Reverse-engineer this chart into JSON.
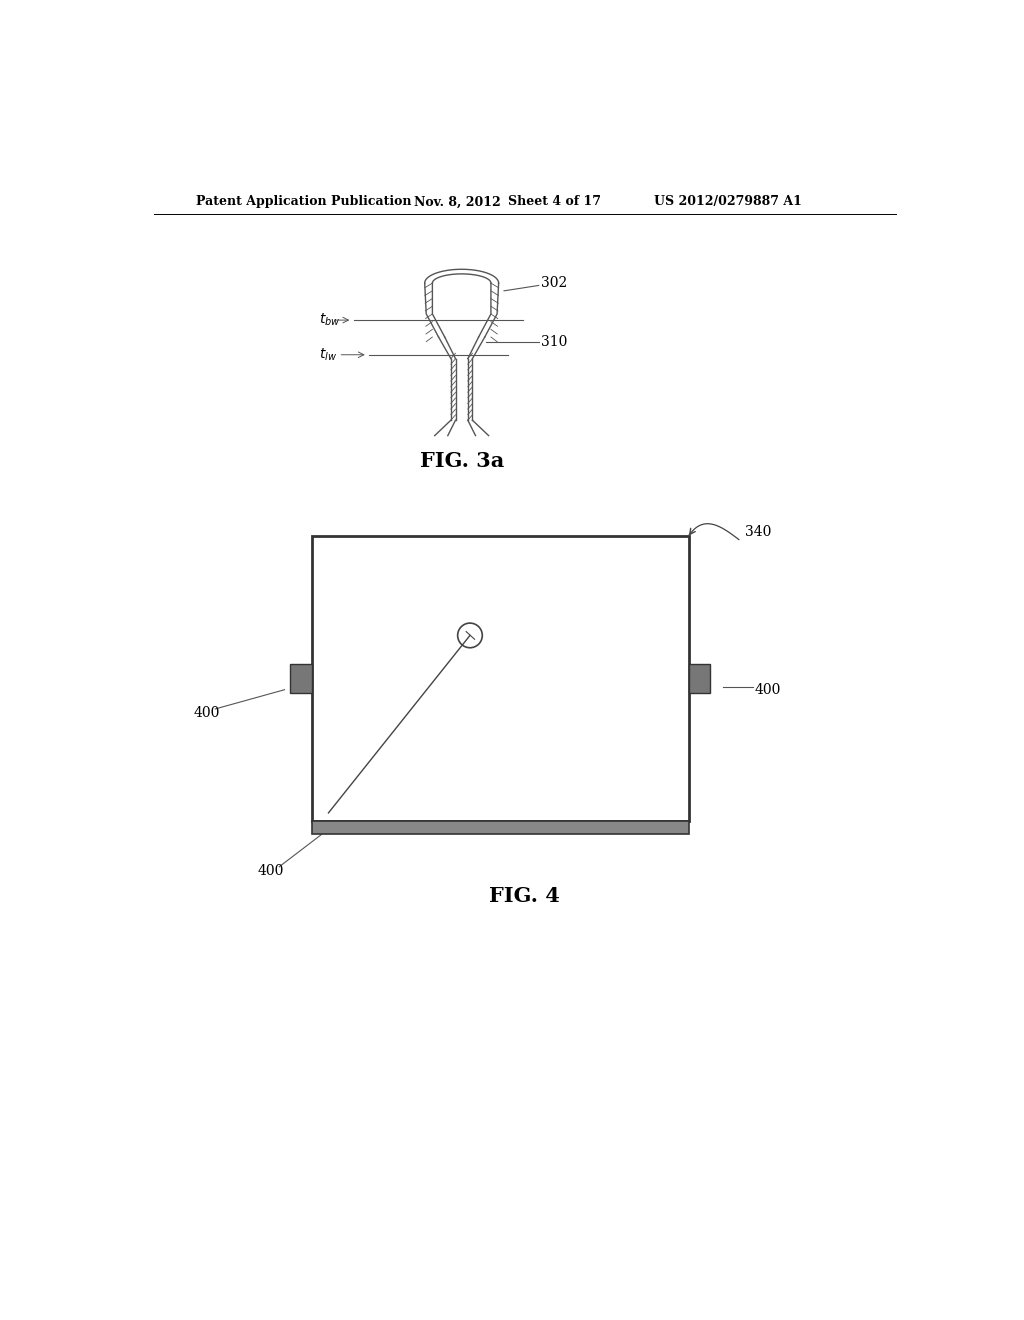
{
  "bg_color": "#ffffff",
  "header_text": "Patent Application Publication",
  "header_date": "Nov. 8, 2012",
  "header_sheet": "Sheet 4 of 17",
  "header_patent": "US 2012/0279887 A1",
  "fig3a_label": "FIG. 3a",
  "fig4_label": "FIG. 4",
  "label_302": "302",
  "label_310": "310",
  "label_340": "340",
  "label_400": "400"
}
